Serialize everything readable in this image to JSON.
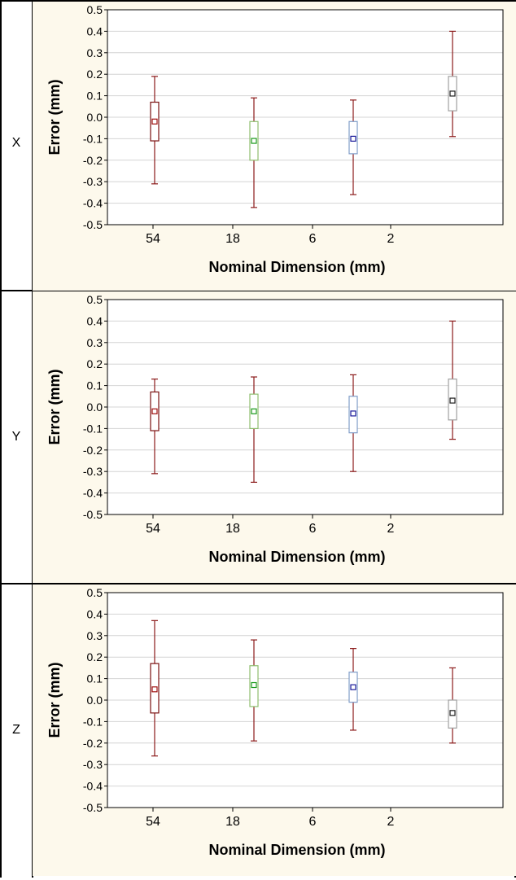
{
  "colors": {
    "panel_bg": "#fdf9ec",
    "plot_bg": "#ffffff",
    "grid": "#d4d4d4",
    "whisker": "#8b1a1a",
    "box_54": "#7a1010",
    "box_18": "#8fbf6f",
    "box_6": "#7f9cc8",
    "box_2": "#a0a0a0",
    "mean_54": "#a01010",
    "mean_18": "#1a9a1a",
    "mean_6": "#1a1a9a",
    "mean_2": "#202020"
  },
  "chart_data": [
    {
      "row_label": "X",
      "type": "box",
      "categories": [
        "54",
        "18",
        "6",
        "2"
      ],
      "xlabel": "Nominal Dimension (mm)",
      "ylabel": "Error (mm)",
      "ylim": [
        -0.5,
        0.5
      ],
      "yticks": [
        "0.5",
        "0.4",
        "0.3",
        "0.2",
        "0.1",
        "0.0",
        "-0.1",
        "-0.2",
        "-0.3",
        "-0.4",
        "-0.5"
      ],
      "grid": true,
      "boxes": [
        {
          "category": "54",
          "min": -0.31,
          "q1": -0.11,
          "mean": -0.02,
          "q3": 0.07,
          "max": 0.19
        },
        {
          "category": "18",
          "min": -0.42,
          "q1": -0.2,
          "mean": -0.11,
          "q3": -0.02,
          "max": 0.09
        },
        {
          "category": "6",
          "min": -0.36,
          "q1": -0.17,
          "mean": -0.1,
          "q3": -0.02,
          "max": 0.08
        },
        {
          "category": "2",
          "min": -0.09,
          "q1": 0.03,
          "mean": 0.11,
          "q3": 0.19,
          "max": 0.4
        }
      ]
    },
    {
      "row_label": "Y",
      "type": "box",
      "categories": [
        "54",
        "18",
        "6",
        "2"
      ],
      "xlabel": "Nominal Dimension (mm)",
      "ylabel": "Error (mm)",
      "ylim": [
        -0.5,
        0.5
      ],
      "yticks": [
        "0.5",
        "0.4",
        "0.3",
        "0.2",
        "0.1",
        "0.0",
        "-0.1",
        "-0.2",
        "-0.3",
        "-0.4",
        "-0.5"
      ],
      "grid": true,
      "boxes": [
        {
          "category": "54",
          "min": -0.31,
          "q1": -0.11,
          "mean": -0.02,
          "q3": 0.07,
          "max": 0.13
        },
        {
          "category": "18",
          "min": -0.35,
          "q1": -0.1,
          "mean": -0.02,
          "q3": 0.06,
          "max": 0.14
        },
        {
          "category": "6",
          "min": -0.3,
          "q1": -0.12,
          "mean": -0.03,
          "q3": 0.05,
          "max": 0.15
        },
        {
          "category": "2",
          "min": -0.15,
          "q1": -0.06,
          "mean": 0.03,
          "q3": 0.13,
          "max": 0.4
        }
      ]
    },
    {
      "row_label": "Z",
      "type": "box",
      "categories": [
        "54",
        "18",
        "6",
        "2"
      ],
      "xlabel": "Nominal Dimension (mm)",
      "ylabel": "Error (mm)",
      "ylim": [
        -0.5,
        0.5
      ],
      "yticks": [
        "0.5",
        "0.4",
        "0.3",
        "0.2",
        "0.1",
        "0.0",
        "-0.1",
        "-0.2",
        "-0.3",
        "-0.4",
        "-0.5"
      ],
      "grid": true,
      "boxes": [
        {
          "category": "54",
          "min": -0.26,
          "q1": -0.06,
          "mean": 0.05,
          "q3": 0.17,
          "max": 0.37
        },
        {
          "category": "18",
          "min": -0.19,
          "q1": -0.03,
          "mean": 0.07,
          "q3": 0.16,
          "max": 0.28
        },
        {
          "category": "6",
          "min": -0.14,
          "q1": -0.01,
          "mean": 0.06,
          "q3": 0.13,
          "max": 0.24
        },
        {
          "category": "2",
          "min": -0.2,
          "q1": -0.13,
          "mean": -0.06,
          "q3": 0.0,
          "max": 0.15
        }
      ]
    }
  ]
}
